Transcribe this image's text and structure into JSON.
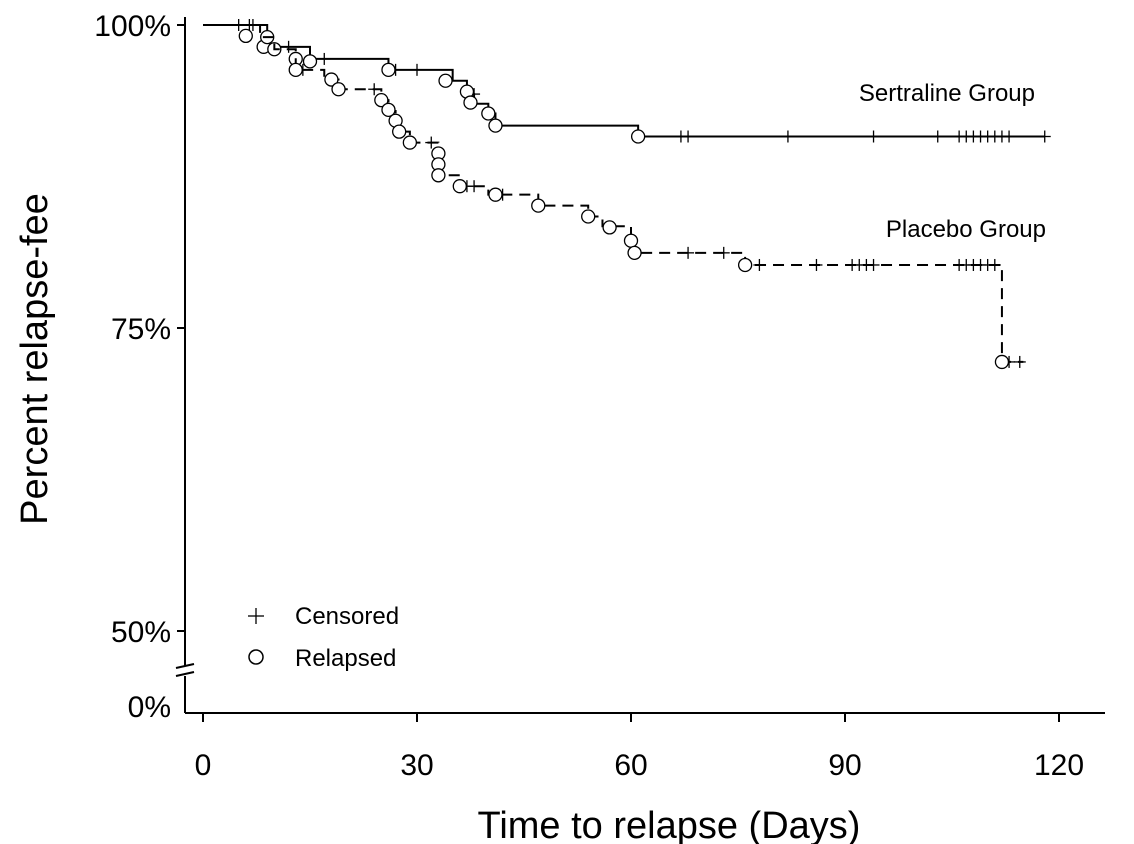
{
  "chart_data": {
    "type": "line",
    "title": "",
    "xlabel": "Time to relapse (Days)",
    "ylabel": "Percent relapse-fee",
    "xlim": [
      0,
      125
    ],
    "ylim": [
      50,
      100
    ],
    "xticks": [
      0,
      30,
      60,
      90,
      120
    ],
    "xtick_labels": [
      "0",
      "30",
      "60",
      "90",
      "120"
    ],
    "yticks": [
      100,
      75,
      50
    ],
    "ytick_labels": [
      "100%",
      "75%",
      "50%"
    ],
    "y_axis_break": {
      "below": 50,
      "label": "0%"
    },
    "grid": false,
    "legend": {
      "placement": "bottom-left",
      "entries": [
        {
          "label": "Censored",
          "marker": "plus"
        },
        {
          "label": "Relapsed",
          "marker": "open-circle"
        }
      ]
    },
    "series": [
      {
        "name": "Sertraline Group",
        "line_style": "solid",
        "steps": [
          [
            0,
            100
          ],
          [
            9,
            98.2
          ],
          [
            15,
            97.2
          ],
          [
            26,
            96.3
          ],
          [
            35,
            95.4
          ],
          [
            37,
            94.3
          ],
          [
            38,
            93.5
          ],
          [
            40,
            92.7
          ],
          [
            41,
            91.7
          ],
          [
            61,
            90.8
          ],
          [
            118,
            90.8
          ]
        ],
        "relapses": [
          [
            6,
            99.1
          ],
          [
            8.5,
            98.2
          ],
          [
            9,
            99.0
          ],
          [
            10,
            98.0
          ],
          [
            13,
            97.2
          ],
          [
            15,
            97.0
          ],
          [
            26,
            96.3
          ],
          [
            34,
            95.4
          ],
          [
            37,
            94.5
          ],
          [
            37.5,
            93.6
          ],
          [
            40,
            92.7
          ],
          [
            41,
            91.7
          ],
          [
            61,
            90.8
          ]
        ],
        "censored": [
          [
            5,
            100
          ],
          [
            6.5,
            100
          ],
          [
            7,
            100
          ],
          [
            12,
            98.2
          ],
          [
            17,
            97.2
          ],
          [
            27,
            96.3
          ],
          [
            30,
            96.3
          ],
          [
            38,
            94.3
          ],
          [
            67,
            90.8
          ],
          [
            68,
            90.8
          ],
          [
            82,
            90.8
          ],
          [
            94,
            90.8
          ],
          [
            103,
            90.8
          ],
          [
            106,
            90.8
          ],
          [
            107,
            90.8
          ],
          [
            108,
            90.8
          ],
          [
            109,
            90.8
          ],
          [
            110,
            90.8
          ],
          [
            111,
            90.8
          ],
          [
            112,
            90.8
          ],
          [
            113,
            90.8
          ],
          [
            118,
            90.8
          ]
        ]
      },
      {
        "name": "Placebo Group",
        "line_style": "dashed",
        "steps": [
          [
            0,
            100
          ],
          [
            8,
            99.0
          ],
          [
            10,
            98.0
          ],
          [
            13,
            96.3
          ],
          [
            17,
            95.5
          ],
          [
            19,
            94.7
          ],
          [
            25,
            93.8
          ],
          [
            26,
            92.9
          ],
          [
            27,
            91.2
          ],
          [
            29,
            90.3
          ],
          [
            33,
            87.6
          ],
          [
            36,
            86.7
          ],
          [
            40,
            86.0
          ],
          [
            47,
            85.1
          ],
          [
            54,
            84.2
          ],
          [
            56,
            83.4
          ],
          [
            60,
            82.2
          ],
          [
            60.5,
            81.2
          ],
          [
            76,
            80.2
          ],
          [
            112,
            72.2
          ],
          [
            115,
            72.2
          ]
        ],
        "relapses": [
          [
            13,
            96.3
          ],
          [
            18,
            95.5
          ],
          [
            19,
            94.7
          ],
          [
            25,
            93.8
          ],
          [
            26,
            93.0
          ],
          [
            27,
            92.1
          ],
          [
            27.5,
            91.2
          ],
          [
            29,
            90.3
          ],
          [
            33,
            89.4
          ],
          [
            33,
            88.5
          ],
          [
            33,
            87.6
          ],
          [
            36,
            86.7
          ],
          [
            41,
            86.0
          ],
          [
            47,
            85.1
          ],
          [
            54,
            84.2
          ],
          [
            57,
            83.3
          ],
          [
            60,
            82.2
          ],
          [
            60.5,
            81.2
          ],
          [
            76,
            80.2
          ],
          [
            112,
            72.2
          ]
        ],
        "censored": [
          [
            14,
            96.3
          ],
          [
            24,
            94.7
          ],
          [
            32,
            90.3
          ],
          [
            37,
            86.7
          ],
          [
            38,
            86.7
          ],
          [
            42,
            86.0
          ],
          [
            68,
            81.2
          ],
          [
            73,
            81.2
          ],
          [
            78,
            80.2
          ],
          [
            86,
            80.2
          ],
          [
            91,
            80.2
          ],
          [
            92,
            80.2
          ],
          [
            93,
            80.2
          ],
          [
            94,
            80.2
          ],
          [
            106,
            80.2
          ],
          [
            107,
            80.2
          ],
          [
            108,
            80.2
          ],
          [
            109,
            80.2
          ],
          [
            110,
            80.2
          ],
          [
            111,
            80.2
          ],
          [
            113,
            72.2
          ],
          [
            114.5,
            72.2
          ]
        ]
      }
    ],
    "annotations": [
      "Sertraline Group",
      "Placebo Group"
    ]
  }
}
